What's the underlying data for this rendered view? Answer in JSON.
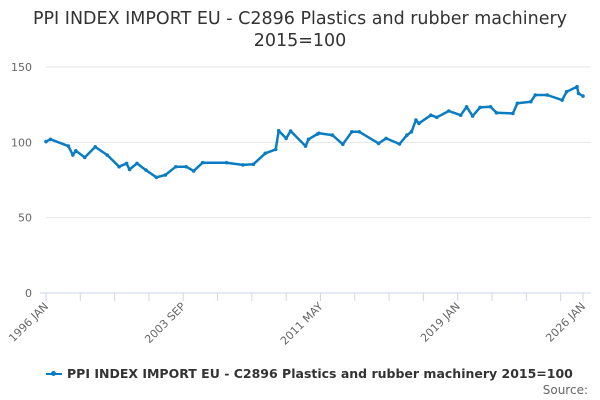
{
  "chart_data": {
    "type": "line",
    "title": "PPI INDEX IMPORT EU - C2896 Plastics and rubber machinery 2015=100",
    "xlabel": "",
    "ylabel": "",
    "ylim": [
      0,
      150
    ],
    "yticks": [
      0,
      50,
      100,
      150
    ],
    "xlim": [
      "1996-01",
      "2026-01"
    ],
    "xtick_labels": [
      "1996 JAN",
      "2003 SEP",
      "2011 MAY",
      "2019 JAN",
      "2026 JAN"
    ],
    "grid": "horizontal",
    "legend_position": "bottom",
    "color": "#0a7dc2",
    "series": [
      {
        "name": "PPI INDEX IMPORT EU - C2896 Plastics and rubber machinery 2015=100",
        "points": [
          [
            "1996-01",
            100.5
          ],
          [
            "1996-04",
            102
          ],
          [
            "1997-04",
            97.5
          ],
          [
            "1997-07",
            91.6
          ],
          [
            "1997-09",
            94.4
          ],
          [
            "1998-03",
            90
          ],
          [
            "1998-10",
            97
          ],
          [
            "1999-06",
            91.6
          ],
          [
            "2000-02",
            83.8
          ],
          [
            "2000-07",
            86
          ],
          [
            "2000-09",
            82
          ],
          [
            "2001-02",
            86
          ],
          [
            "2001-08",
            81.6
          ],
          [
            "2002-03",
            76.8
          ],
          [
            "2002-09",
            78.3
          ],
          [
            "2003-04",
            83.8
          ],
          [
            "2003-11",
            83.8
          ],
          [
            "2004-04",
            81
          ],
          [
            "2004-10",
            86.5
          ],
          [
            "2006-02",
            86.5
          ],
          [
            "2007-01",
            85
          ],
          [
            "2007-08",
            85.4
          ],
          [
            "2008-04",
            92.7
          ],
          [
            "2008-11",
            95.3
          ],
          [
            "2009-01",
            107.7
          ],
          [
            "2009-06",
            102.6
          ],
          [
            "2009-09",
            107.5
          ],
          [
            "2010-07",
            97.5
          ],
          [
            "2010-09",
            102
          ],
          [
            "2011-03",
            105.5
          ],
          [
            "2011-04",
            106
          ],
          [
            "2012-01",
            104.8
          ],
          [
            "2012-08",
            98.7
          ],
          [
            "2013-02",
            107
          ],
          [
            "2013-07",
            107
          ],
          [
            "2014-08",
            99.3
          ],
          [
            "2015-01",
            102.6
          ],
          [
            "2015-10",
            98.9
          ],
          [
            "2016-03",
            104.8
          ],
          [
            "2016-06",
            107
          ],
          [
            "2016-09",
            114.8
          ],
          [
            "2016-11",
            112.6
          ],
          [
            "2017-07",
            118
          ],
          [
            "2017-11",
            116.6
          ],
          [
            "2018-07",
            120.8
          ],
          [
            "2019-03",
            118
          ],
          [
            "2019-07",
            123.6
          ],
          [
            "2019-11",
            117.4
          ],
          [
            "2020-04",
            123.2
          ],
          [
            "2020-11",
            123.6
          ],
          [
            "2021-03",
            119.6
          ],
          [
            "2022-02",
            119.2
          ],
          [
            "2022-05",
            125.9
          ],
          [
            "2023-02",
            127
          ],
          [
            "2023-05",
            131.4
          ],
          [
            "2024-01",
            131.4
          ],
          [
            "2024-11",
            128
          ],
          [
            "2025-02",
            133.6
          ],
          [
            "2025-09",
            136.9
          ],
          [
            "2025-10",
            132.5
          ],
          [
            "2026-01",
            130.7
          ]
        ]
      }
    ]
  },
  "source_label": "Source:"
}
